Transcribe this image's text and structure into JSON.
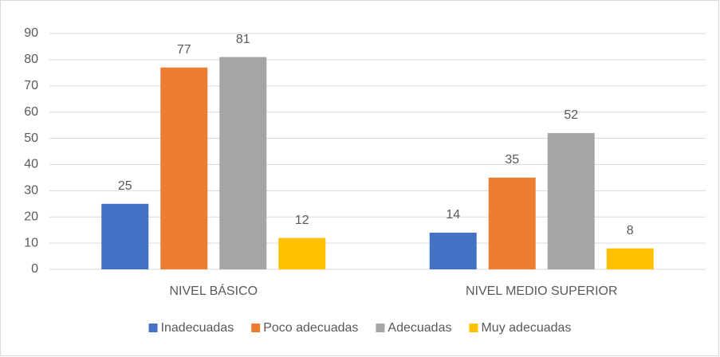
{
  "chart_data": {
    "type": "bar",
    "categories": [
      "NIVEL BÁSICO",
      "NIVEL MEDIO SUPERIOR"
    ],
    "series": [
      {
        "name": "Inadecuadas",
        "color": "#4472c4",
        "values": [
          25,
          14
        ]
      },
      {
        "name": "Poco adecuadas",
        "color": "#ed7d31",
        "values": [
          77,
          35
        ]
      },
      {
        "name": "Adecuadas",
        "color": "#a5a5a5",
        "values": [
          81,
          52
        ]
      },
      {
        "name": "Muy adecuadas",
        "color": "#ffc000",
        "values": [
          12,
          8
        ]
      }
    ],
    "ylim": [
      0,
      90
    ],
    "yticks": [
      0,
      10,
      20,
      30,
      40,
      50,
      60,
      70,
      80,
      90
    ],
    "grid": true,
    "legend": "bottom"
  }
}
